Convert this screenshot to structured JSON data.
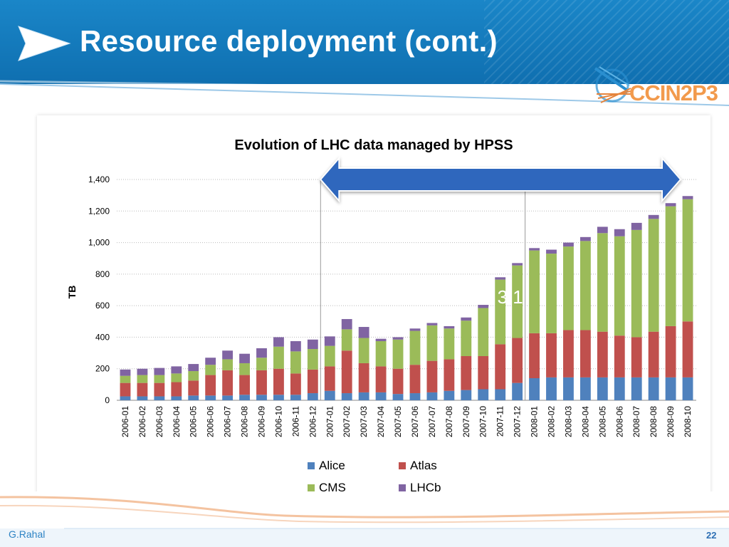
{
  "slide": {
    "title": "Resource deployment (cont.)",
    "logo_text": "CCIN2P3",
    "author": "G.Rahal",
    "page_number": "22",
    "header_color": "#1478bd"
  },
  "annotation": {
    "label": "X 3.1",
    "color": "#2f67bd",
    "span": [
      "2007-01",
      "2008-10"
    ]
  },
  "chart_data": {
    "type": "bar",
    "stacked": true,
    "title": "Evolution of LHC data managed by HPSS",
    "xlabel": "",
    "ylabel": "TB",
    "ylim": [
      0,
      1400
    ],
    "yticks": [
      0,
      200,
      400,
      600,
      800,
      1000,
      1200,
      1400
    ],
    "ytick_labels": [
      "0",
      "200",
      "400",
      "600",
      "800",
      "1,000",
      "1,200",
      "1,400"
    ],
    "grid": true,
    "legend_position": "bottom",
    "categories": [
      "2006-01",
      "2006-02",
      "2006-03",
      "2006-04",
      "2006-05",
      "2006-06",
      "2006-07",
      "2006-08",
      "2006-09",
      "2006-10",
      "2006-11",
      "2006-12",
      "2007-01",
      "2007-02",
      "2007-03",
      "2007-04",
      "2007-05",
      "2007-06",
      "2007-07",
      "2007-08",
      "2007-09",
      "2007-10",
      "2007-11",
      "2007-12",
      "2008-01",
      "2008-02",
      "2008-03",
      "2008-04",
      "2008-05",
      "2008-06",
      "2008-07",
      "2008-08",
      "2008-09",
      "2008-10"
    ],
    "series": [
      {
        "name": "Alice",
        "color": "#4f81bd",
        "values": [
          25,
          25,
          25,
          25,
          30,
          30,
          30,
          35,
          35,
          35,
          35,
          45,
          60,
          45,
          50,
          50,
          40,
          45,
          50,
          60,
          65,
          70,
          70,
          110,
          140,
          145,
          145,
          145,
          145,
          145,
          145,
          145,
          145,
          145
        ]
      },
      {
        "name": "Atlas",
        "color": "#c0504d",
        "values": [
          85,
          85,
          85,
          90,
          95,
          130,
          160,
          125,
          155,
          165,
          135,
          150,
          155,
          270,
          185,
          165,
          160,
          180,
          200,
          200,
          215,
          210,
          285,
          285,
          285,
          280,
          300,
          300,
          290,
          265,
          255,
          290,
          325,
          355
        ]
      },
      {
        "name": "CMS",
        "color": "#9bbb59",
        "values": [
          45,
          50,
          50,
          55,
          60,
          65,
          70,
          75,
          80,
          140,
          140,
          130,
          130,
          135,
          160,
          160,
          185,
          215,
          225,
          195,
          225,
          305,
          410,
          460,
          525,
          505,
          530,
          565,
          625,
          630,
          680,
          715,
          760,
          775
        ]
      },
      {
        "name": "LHCb",
        "color": "#8064a2",
        "values": [
          40,
          40,
          45,
          45,
          45,
          45,
          55,
          60,
          60,
          60,
          65,
          60,
          60,
          65,
          70,
          15,
          15,
          15,
          15,
          15,
          20,
          20,
          15,
          15,
          15,
          25,
          25,
          25,
          40,
          45,
          45,
          25,
          20,
          20
        ]
      }
    ]
  }
}
